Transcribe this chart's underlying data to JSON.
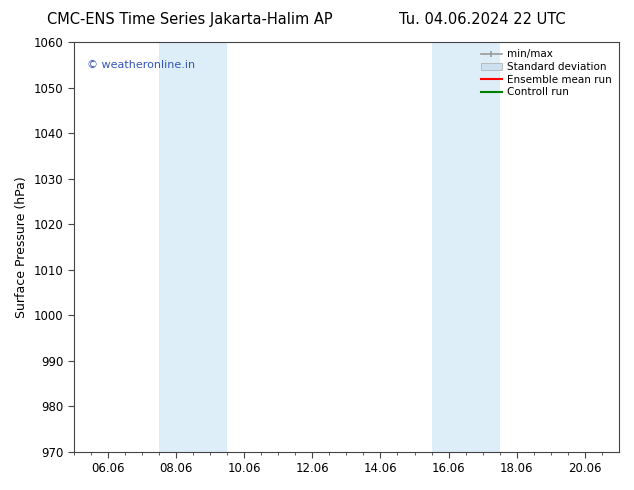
{
  "title_left": "CMC-ENS Time Series Jakarta-Halim AP",
  "title_right": "Tu. 04.06.2024 22 UTC",
  "ylabel": "Surface Pressure (hPa)",
  "ylim": [
    970,
    1060
  ],
  "yticks": [
    970,
    980,
    990,
    1000,
    1010,
    1020,
    1030,
    1040,
    1050,
    1060
  ],
  "xtick_labels": [
    "06.06",
    "08.06",
    "10.06",
    "12.06",
    "14.06",
    "16.06",
    "18.06",
    "20.06"
  ],
  "xtick_positions": [
    0,
    2,
    4,
    6,
    8,
    10,
    12,
    14
  ],
  "xmin": -1,
  "xmax": 15,
  "shaded_bands": [
    {
      "x_start": 1.5,
      "x_end": 3.5,
      "color": "#ddeef8"
    },
    {
      "x_start": 9.5,
      "x_end": 11.5,
      "color": "#ddeef8"
    }
  ],
  "watermark_text": "© weatheronline.in",
  "watermark_color": "#3355bb",
  "legend_labels": [
    "min/max",
    "Standard deviation",
    "Ensemble mean run",
    "Controll run"
  ],
  "legend_colors": [
    "#999999",
    "#cce0f0",
    "red",
    "green"
  ],
  "bg_color": "#ffffff",
  "spine_color": "#444444",
  "title_fontsize": 10.5,
  "ylabel_fontsize": 9,
  "tick_fontsize": 8.5,
  "watermark_fontsize": 8,
  "legend_fontsize": 7.5
}
